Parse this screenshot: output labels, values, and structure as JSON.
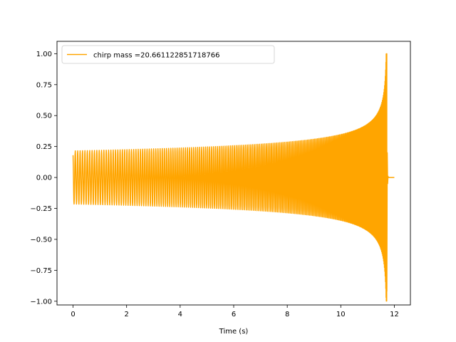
{
  "chart_data": {
    "type": "line",
    "xlabel": "Time (s)",
    "ylabel": "",
    "xlim": [
      -0.6,
      12.6
    ],
    "ylim": [
      -1.03,
      1.1
    ],
    "x_ticks": [
      0,
      2,
      4,
      6,
      8,
      10,
      12
    ],
    "x_tick_labels": [
      "0",
      "2",
      "4",
      "6",
      "8",
      "10",
      "12"
    ],
    "y_ticks": [
      1.0,
      0.75,
      0.5,
      0.25,
      0.0,
      -0.25,
      -0.5,
      -0.75,
      -1.0
    ],
    "y_tick_labels": [
      "1.00",
      "0.75",
      "0.50",
      "0.25",
      "0.00",
      "−0.25",
      "−0.50",
      "−0.75",
      "−1.00"
    ],
    "grid": false,
    "legend_position": "top-left",
    "series": [
      {
        "name": "chirp mass =20.661122851718766",
        "color": "#ffa500",
        "signal": {
          "t_start": 0.0,
          "t_merger": 11.72,
          "t_end": 12.0,
          "amplitude_start": 0.215,
          "peak_amplitude": 1.0,
          "peak_min": -0.92,
          "initial_value": 0.18,
          "frequency_start_hz": 11.0
        }
      }
    ]
  }
}
